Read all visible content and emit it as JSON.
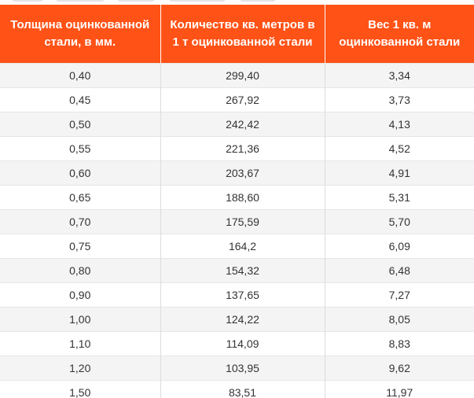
{
  "table": {
    "headers": [
      "Толщина оцинкованной стали, в мм.",
      "Количество кв. метров в 1 т оцинкованной стали",
      "Вес 1 кв. м оцинкованной стали"
    ],
    "rows": [
      [
        "0,40",
        "299,40",
        "3,34"
      ],
      [
        "0,45",
        "267,92",
        "3,73"
      ],
      [
        "0,50",
        "242,42",
        "4,13"
      ],
      [
        "0,55",
        "221,36",
        "4,52"
      ],
      [
        "0,60",
        "203,67",
        "4,91"
      ],
      [
        "0,65",
        "188,60",
        "5,31"
      ],
      [
        "0,70",
        "175,59",
        "5,70"
      ],
      [
        "0,75",
        "164,2",
        "6,09"
      ],
      [
        "0,80",
        "154,32",
        "6,48"
      ],
      [
        "0,90",
        "137,65",
        "7,27"
      ],
      [
        "1,00",
        "124,22",
        "8,05"
      ],
      [
        "1,10",
        "114,09",
        "8,83"
      ],
      [
        "1,20",
        "103,95",
        "9,62"
      ],
      [
        "1,50",
        "83,51",
        "11,97"
      ]
    ]
  },
  "colors": {
    "header_bg": "#ff5216",
    "header_text": "#ffffff",
    "stripe_bg": "#f4f4f4",
    "cell_text": "#333333"
  }
}
